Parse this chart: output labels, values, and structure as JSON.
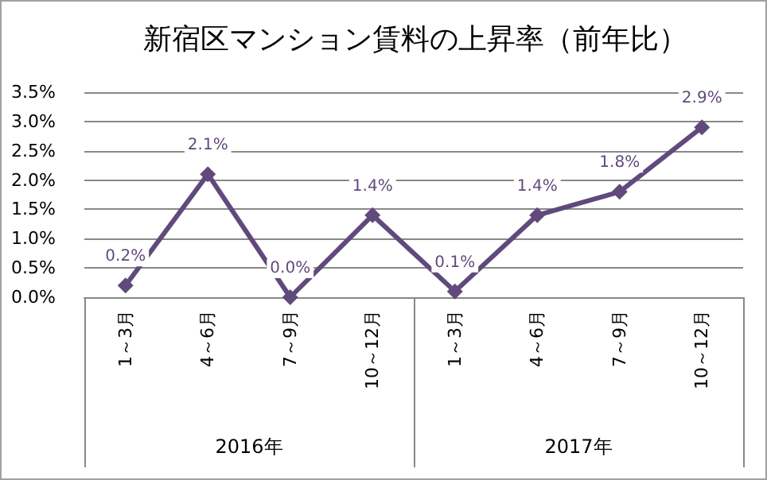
{
  "chart_data": {
    "type": "line",
    "title": "新宿区マンション賃料の上昇率（前年比）",
    "categories": [
      "1～3月",
      "4～6月",
      "7～9月",
      "10～12月",
      "1～3月",
      "4～6月",
      "7～9月",
      "10～12月"
    ],
    "annotations": [
      "2016年",
      "2017年"
    ],
    "series": [
      {
        "color": "#604a7b",
        "values": [
          0.2,
          2.1,
          0.0,
          1.4,
          0.1,
          1.4,
          1.8,
          2.9
        ],
        "value_labels": [
          "0.2%",
          "2.1%",
          "0.0%",
          "1.4%",
          "0.1%",
          "1.4%",
          "1.8%",
          "2.9%"
        ]
      }
    ],
    "ylim": [
      0,
      3.5
    ],
    "yticks": [
      {
        "value": 0,
        "label": "0.0%"
      },
      {
        "value": 0.5,
        "label": "0.5%"
      },
      {
        "value": 1,
        "label": "1.0%"
      },
      {
        "value": 1.5,
        "label": "1.5%"
      },
      {
        "value": 2,
        "label": "2.0%"
      },
      {
        "value": 2.5,
        "label": "2.5%"
      },
      {
        "value": 3,
        "label": "3.0%"
      },
      {
        "value": 3.5,
        "label": "3.5%"
      }
    ],
    "grid": "y",
    "marker": "diamond",
    "line_style": "solid"
  }
}
